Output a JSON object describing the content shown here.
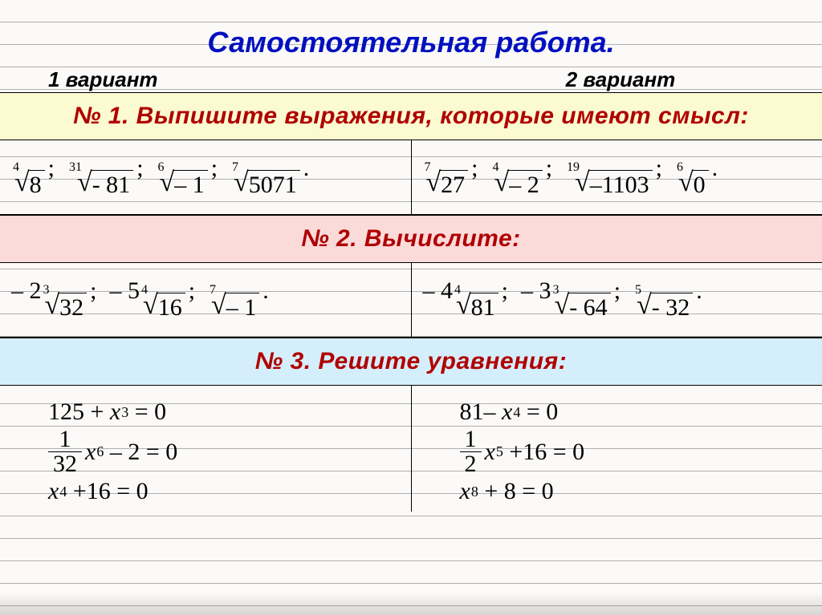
{
  "title": "Самостоятельная  работа.",
  "variant1": "1 вариант",
  "variant2": "2 вариант",
  "task1_header": "№ 1.   Выпишите  выражения,  которые имеют  смысл:",
  "task2_header": "№ 2.  Вычислите:",
  "task3_header": "№ 3.   Решите  уравнения:",
  "t1": {
    "v1": [
      {
        "idx": "4",
        "rad": "8",
        "sep": ";"
      },
      {
        "idx": "31",
        "rad": "- 81",
        "sep": ";"
      },
      {
        "idx": "6",
        "rad": "– 1",
        "sep": ";"
      },
      {
        "idx": "7",
        "rad": "5071",
        "sep": "."
      }
    ],
    "v2": [
      {
        "idx": "7",
        "rad": "27",
        "sep": ";"
      },
      {
        "idx": "4",
        "rad": "– 2",
        "sep": ";"
      },
      {
        "idx": "19",
        "rad": "–1103",
        "sep": ";"
      },
      {
        "idx": "6",
        "rad": "0",
        "sep": "."
      }
    ]
  },
  "t2": {
    "v1": [
      {
        "coef": "– 2",
        "idx": "3",
        "rad": "32",
        "sep": ";"
      },
      {
        "coef": "– 5",
        "idx": "4",
        "rad": "16",
        "sep": ";"
      },
      {
        "coef": "",
        "idx": "7",
        "rad": "– 1",
        "sep": "."
      }
    ],
    "v2": [
      {
        "coef": "– 4",
        "idx": "4",
        "rad": "81",
        "sep": ";"
      },
      {
        "coef": "– 3",
        "idx": "3",
        "rad": "- 64",
        "sep": ";"
      },
      {
        "coef": "",
        "idx": "5",
        "rad": "- 32",
        "sep": "."
      }
    ]
  },
  "t3": {
    "v1": {
      "e1": {
        "text": "125 + x³ = 0",
        "a": "125",
        "op": "+",
        "var": "x",
        "pow": "3"
      },
      "e2": {
        "num": "1",
        "den": "32",
        "var": "x",
        "pow": "6",
        "op": "– 2",
        "rhs": "= 0"
      },
      "e3": {
        "var": "x",
        "pow": "4",
        "op": "+16",
        "rhs": "= 0"
      }
    },
    "v2": {
      "e1": {
        "a": "81",
        "op": "–",
        "var": "x",
        "pow": "4",
        "rhs": "= 0"
      },
      "e2": {
        "num": "1",
        "den": "2",
        "var": "x",
        "pow": "5",
        "op": "+16",
        "rhs": "= 0"
      },
      "e3": {
        "var": "x",
        "pow": "8",
        "op": "+ 8",
        "rhs": "= 0"
      }
    }
  },
  "colors": {
    "title": "#0010c0",
    "task_header": "#b00000",
    "yellow_bg": "#fbfad0",
    "pink_bg": "#fbdada",
    "blue_bg": "#d5eefb",
    "paper": "#fcfaf8",
    "line": "#b0b0b0"
  }
}
